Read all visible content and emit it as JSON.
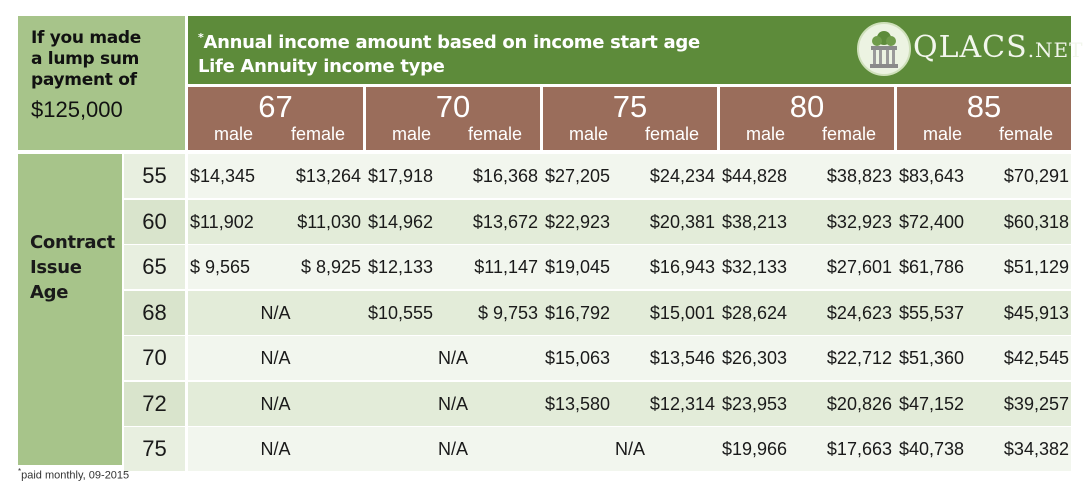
{
  "corner": {
    "line1": "If you made",
    "line2": "a lump sum",
    "line3": "payment of",
    "amount": "$125,000"
  },
  "banner": {
    "asterisk": "*",
    "line1": "Annual income amount based on income start age",
    "line2": "Life Annuity income type"
  },
  "logo": {
    "text_main": "QLACS",
    "text_suffix": ".NET"
  },
  "side_label": [
    "Contract",
    "Issue",
    "Age"
  ],
  "footnote": {
    "asterisk": "*",
    "text": "paid monthly, 09-2015"
  },
  "colors": {
    "header_green": "#5d8b3a",
    "light_green": "#a7c48a",
    "band_brown": "#9a6d5b",
    "row_shade": "#e3ecd9",
    "row_light": "#f2f6ee"
  },
  "chart_data": {
    "type": "table",
    "title": "Annual income amount based on income start age",
    "subtitle": "Life Annuity income type",
    "sexes": [
      "male",
      "female"
    ],
    "start_ages": [
      "67",
      "70",
      "75",
      "80",
      "85"
    ],
    "issue_ages": [
      "55",
      "60",
      "65",
      "68",
      "70",
      "72",
      "75"
    ],
    "rows": [
      {
        "age": "55",
        "values": [
          [
            "$14,345",
            "$13,264"
          ],
          [
            "$17,918",
            "$16,368"
          ],
          [
            "$27,205",
            "$24,234"
          ],
          [
            "$44,828",
            "$38,823"
          ],
          [
            "$83,643",
            "$70,291"
          ]
        ]
      },
      {
        "age": "60",
        "values": [
          [
            "$11,902",
            "$11,030"
          ],
          [
            "$14,962",
            "$13,672"
          ],
          [
            "$22,923",
            "$20,381"
          ],
          [
            "$38,213",
            "$32,923"
          ],
          [
            "$72,400",
            "$60,318"
          ]
        ]
      },
      {
        "age": "65",
        "values": [
          [
            "$ 9,565",
            "$ 8,925"
          ],
          [
            "$12,133",
            "$11,147"
          ],
          [
            "$19,045",
            "$16,943"
          ],
          [
            "$32,133",
            "$27,601"
          ],
          [
            "$61,786",
            "$51,129"
          ]
        ]
      },
      {
        "age": "68",
        "values": [
          "N/A",
          [
            "$10,555",
            "$ 9,753"
          ],
          [
            "$16,792",
            "$15,001"
          ],
          [
            "$28,624",
            "$24,623"
          ],
          [
            "$55,537",
            "$45,913"
          ]
        ]
      },
      {
        "age": "70",
        "values": [
          "N/A",
          "N/A",
          [
            "$15,063",
            "$13,546"
          ],
          [
            "$26,303",
            "$22,712"
          ],
          [
            "$51,360",
            "$42,545"
          ]
        ]
      },
      {
        "age": "72",
        "values": [
          "N/A",
          "N/A",
          [
            "$13,580",
            "$12,314"
          ],
          [
            "$23,953",
            "$20,826"
          ],
          [
            "$47,152",
            "$39,257"
          ]
        ]
      },
      {
        "age": "75",
        "values": [
          "N/A",
          "N/A",
          "N/A",
          [
            "$19,966",
            "$17,663"
          ],
          [
            "$40,738",
            "$34,382"
          ]
        ]
      }
    ]
  }
}
